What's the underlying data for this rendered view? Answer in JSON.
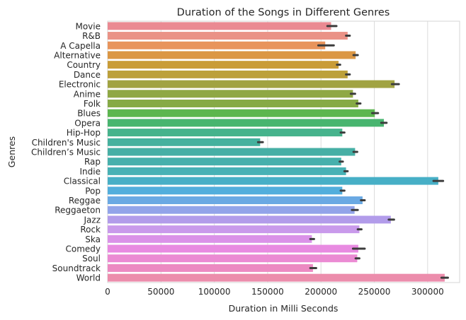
{
  "chart_data": {
    "type": "bar",
    "orientation": "horizontal",
    "title": "Duration of the Songs in Different Genres",
    "xlabel": "Duration in Milli Seconds",
    "ylabel": "Genres",
    "xlim": [
      0,
      330000
    ],
    "x_ticks": [
      0,
      50000,
      100000,
      150000,
      200000,
      250000,
      300000
    ],
    "x_tick_labels": [
      "0",
      "50000",
      "100000",
      "150000",
      "200000",
      "250000",
      "300000"
    ],
    "grid": "vertical",
    "categories": [
      "Movie",
      "R&B",
      "A Capella",
      "Alternative",
      "Country",
      "Dance",
      "Electronic",
      "Anime",
      "Folk",
      "Blues",
      "Opera",
      "Hip-Hop",
      "Children's Music",
      "Children’s Music",
      "Rap",
      "Indie",
      "Classical",
      "Pop",
      "Reggae",
      "Reggaeton",
      "Jazz",
      "Rock",
      "Ska",
      "Comedy",
      "Soul",
      "Soundtrack",
      "World"
    ],
    "values": [
      209500,
      225000,
      204000,
      232500,
      216500,
      225000,
      269000,
      230000,
      235000,
      250500,
      259000,
      220000,
      143000,
      232000,
      219000,
      223500,
      310000,
      220000,
      239000,
      231500,
      265500,
      236000,
      191500,
      235000,
      234000,
      192500,
      316000
    ],
    "ci_low": [
      206000,
      223500,
      197500,
      230500,
      215000,
      223500,
      266500,
      228000,
      233500,
      248000,
      256500,
      218500,
      141000,
      230500,
      217500,
      222000,
      305500,
      218500,
      237500,
      229000,
      263500,
      234500,
      190000,
      230000,
      232500,
      190000,
      313000
    ],
    "ci_high": [
      214500,
      227000,
      212000,
      234500,
      218000,
      227000,
      273000,
      232000,
      237000,
      253500,
      261500,
      222000,
      145500,
      234000,
      220500,
      225000,
      314500,
      222000,
      241000,
      234500,
      268500,
      238000,
      193500,
      241000,
      236000,
      195500,
      319000
    ],
    "colors": [
      "#ea8a92",
      "#ea9286",
      "#e8945c",
      "#db9744",
      "#c99c37",
      "#bca03b",
      "#a1a342",
      "#8fa844",
      "#86aa46",
      "#5cb64e",
      "#48b56f",
      "#46b38c",
      "#45b19e",
      "#46afa5",
      "#46b0ac",
      "#47b1b5",
      "#47afc6",
      "#52aedc",
      "#6aa9e3",
      "#92a4e9",
      "#b29cea",
      "#c99aeb",
      "#da92e8",
      "#e88be1",
      "#eb8bd3",
      "#ec8ac2",
      "#ec8dac"
    ],
    "ci_color": "#3c3c3c",
    "grid_color": "#dcdcdc"
  }
}
